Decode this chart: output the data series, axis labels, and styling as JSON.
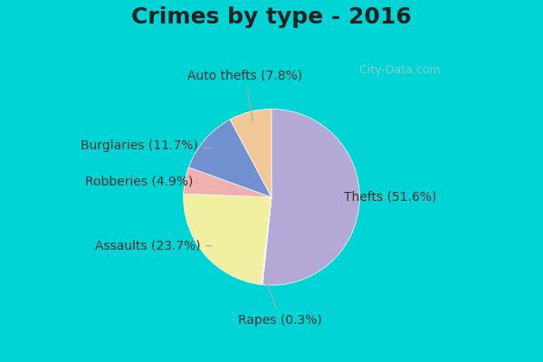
{
  "title": "Crimes by type - 2016",
  "title_fontsize": 18,
  "title_fontweight": "bold",
  "slices": [
    {
      "label": "Thefts",
      "pct": 51.6,
      "color": "#b3a8d6"
    },
    {
      "label": "Rapes",
      "pct": 0.3,
      "color": "#f5f0c8"
    },
    {
      "label": "Assaults",
      "pct": 23.7,
      "color": "#f0f0a0"
    },
    {
      "label": "Robberies",
      "pct": 4.9,
      "color": "#f0b0b0"
    },
    {
      "label": "Burglaries",
      "pct": 11.7,
      "color": "#7090d0"
    },
    {
      "label": "Auto thefts",
      "pct": 7.8,
      "color": "#f0c898"
    }
  ],
  "background_color_top": "#00d4d4",
  "background_color_inner": "#d0e8d0",
  "label_fontsize": 11,
  "startangle": 90
}
